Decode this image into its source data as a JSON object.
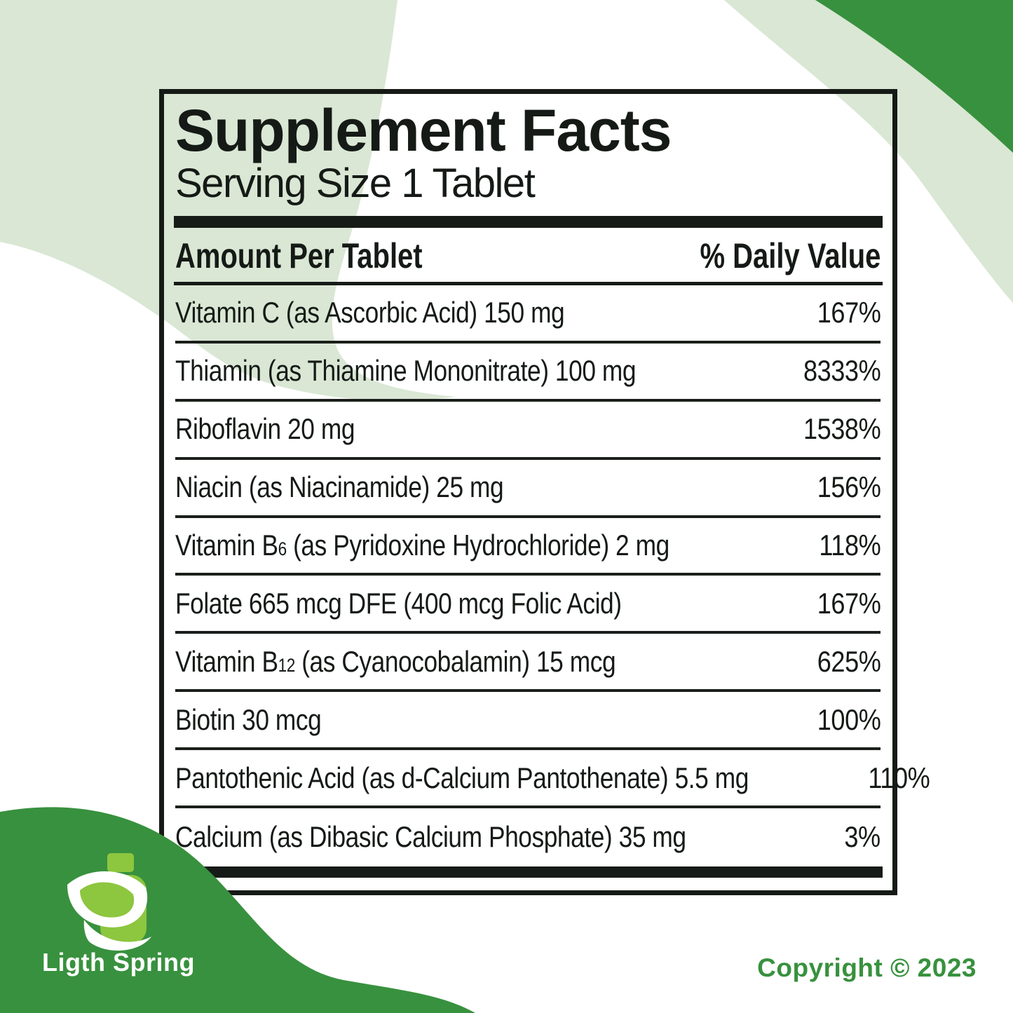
{
  "label": {
    "title": "Supplement Facts",
    "serving_size": "Serving Size 1 Tablet",
    "columns": {
      "left": "Amount Per Tablet",
      "right": "% Daily Value"
    },
    "rows": [
      {
        "parts": [
          {
            "t": "Vitamin C (as Ascorbic Acid) 150 mg"
          }
        ],
        "daily_value": "167%"
      },
      {
        "parts": [
          {
            "t": "Thiamin (as Thiamine Mononitrate) 100 mg"
          }
        ],
        "daily_value": "8333%"
      },
      {
        "parts": [
          {
            "t": "Riboflavin 20 mg"
          }
        ],
        "daily_value": "1538%"
      },
      {
        "parts": [
          {
            "t": "Niacin (as Niacinamide) 25 mg"
          }
        ],
        "daily_value": "156%"
      },
      {
        "parts": [
          {
            "t": "Vitamin B"
          },
          {
            "t": "6",
            "sub": true
          },
          {
            "t": " (as Pyridoxine Hydrochloride) 2 mg"
          }
        ],
        "daily_value": "118%"
      },
      {
        "parts": [
          {
            "t": "Folate 665 mcg DFE (400 mcg Folic Acid)"
          }
        ],
        "daily_value": "167%"
      },
      {
        "parts": [
          {
            "t": "Vitamin B"
          },
          {
            "t": "12",
            "sub": true
          },
          {
            "t": " (as Cyanocobalamin) 15 mcg"
          }
        ],
        "daily_value": "625%"
      },
      {
        "parts": [
          {
            "t": "Biotin 30 mcg"
          }
        ],
        "daily_value": "100%"
      },
      {
        "parts": [
          {
            "t": "Pantothenic Acid (as d-Calcium Pantothenate) 5.5 mg"
          }
        ],
        "daily_value": "110%"
      },
      {
        "parts": [
          {
            "t": "Calcium (as Dibasic Calcium Phosphate) 35 mg"
          }
        ],
        "daily_value": "3%"
      }
    ]
  },
  "branding": {
    "logo_text": "Ligth Spring",
    "logo_icon": "leaf-and-bottle-icon",
    "copyright": "Copyright © 2023"
  },
  "colors": {
    "dark_green_blob": "#38913e",
    "pale_green_blob": "#d9e7d4",
    "logo_light_green": "#8dc63f",
    "text_dark": "#151a16",
    "copyright_green": "#38913e",
    "background": "#ffffff"
  }
}
